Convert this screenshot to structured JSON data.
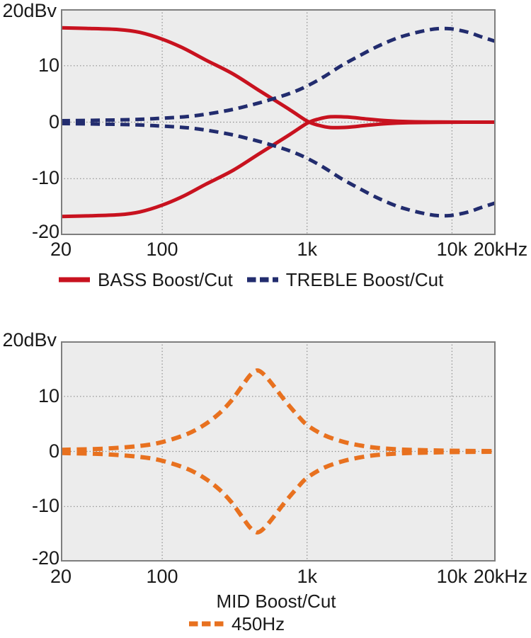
{
  "figure": {
    "description": "Tone control frequency response curves",
    "colors": {
      "bass_red": "#c8121f",
      "treble_navy": "#222c6e",
      "mid_orange": "#e8711f",
      "plot_background": "#ececec",
      "gridline": "#8f8f8f",
      "plot_border": "#7e7e7e",
      "text": "#1a1a1a"
    }
  },
  "chart_data": [
    {
      "type": "line",
      "title": "",
      "x_scale": "log",
      "x_range_hz": [
        20,
        20000
      ],
      "y_range_db": [
        -20,
        20
      ],
      "y_top_label": "20dBv",
      "y_ticks": [
        {
          "label": "10",
          "value": 10
        },
        {
          "label": "0",
          "value": 0
        },
        {
          "label": "-10",
          "value": -10
        },
        {
          "label": "-20",
          "value": -20
        }
      ],
      "x_ticks": [
        {
          "label": "20",
          "hz": 20
        },
        {
          "label": "100",
          "hz": 100
        },
        {
          "label": "1k",
          "hz": 1000
        },
        {
          "label": "10k",
          "hz": 10000
        },
        {
          "label": "20kHz",
          "hz": 20000
        }
      ],
      "grid": {
        "x_hz": [
          100,
          1000,
          10000
        ],
        "y_db": [
          10,
          0,
          -10
        ]
      },
      "legend": [
        {
          "label": "BASS Boost/Cut",
          "color": "#c8121f",
          "dashed": false
        },
        {
          "label": "TREBLE Boost/Cut",
          "color": "#222c6e",
          "dashed": true
        }
      ],
      "series": [
        {
          "name": "bass-boost",
          "color": "#c8121f",
          "dashed": false,
          "width": 5,
          "points": [
            [
              20,
              16.7
            ],
            [
              30,
              16.6
            ],
            [
              50,
              16.4
            ],
            [
              70,
              15.9
            ],
            [
              100,
              14.7
            ],
            [
              140,
              13.1
            ],
            [
              200,
              11.0
            ],
            [
              310,
              8.5
            ],
            [
              480,
              5.4
            ],
            [
              760,
              2.2
            ],
            [
              1000,
              0.2
            ],
            [
              1200,
              -0.55
            ],
            [
              1450,
              -0.95
            ],
            [
              1900,
              -0.9
            ],
            [
              2600,
              -0.55
            ],
            [
              3600,
              -0.25
            ],
            [
              5000,
              -0.1
            ],
            [
              8000,
              -0.02
            ],
            [
              20000,
              0
            ]
          ]
        },
        {
          "name": "bass-cut",
          "color": "#c8121f",
          "dashed": false,
          "width": 5,
          "points": [
            [
              20,
              -16.7
            ],
            [
              30,
              -16.6
            ],
            [
              50,
              -16.4
            ],
            [
              70,
              -15.9
            ],
            [
              100,
              -14.7
            ],
            [
              140,
              -13.1
            ],
            [
              200,
              -11.0
            ],
            [
              310,
              -8.5
            ],
            [
              480,
              -5.4
            ],
            [
              760,
              -2.2
            ],
            [
              1000,
              -0.2
            ],
            [
              1200,
              0.55
            ],
            [
              1450,
              0.95
            ],
            [
              1900,
              0.9
            ],
            [
              2600,
              0.55
            ],
            [
              3600,
              0.25
            ],
            [
              5000,
              0.1
            ],
            [
              8000,
              0.02
            ],
            [
              20000,
              0
            ]
          ]
        },
        {
          "name": "treble-boost",
          "color": "#222c6e",
          "dashed": true,
          "width": 5,
          "points": [
            [
              20,
              0.25
            ],
            [
              40,
              0.35
            ],
            [
              70,
              0.5
            ],
            [
              100,
              0.7
            ],
            [
              150,
              1.0
            ],
            [
              200,
              1.4
            ],
            [
              300,
              2.2
            ],
            [
              450,
              3.3
            ],
            [
              630,
              4.4
            ],
            [
              800,
              5.3
            ],
            [
              1000,
              6.4
            ],
            [
              1300,
              8.0
            ],
            [
              1700,
              9.9
            ],
            [
              2200,
              11.5
            ],
            [
              3000,
              13.3
            ],
            [
              4000,
              14.7
            ],
            [
              5000,
              15.5
            ],
            [
              6500,
              16.2
            ],
            [
              8000,
              16.55
            ],
            [
              10000,
              16.5
            ],
            [
              13000,
              15.9
            ],
            [
              16000,
              15.1
            ],
            [
              20000,
              14.3
            ]
          ]
        },
        {
          "name": "treble-cut",
          "color": "#222c6e",
          "dashed": true,
          "width": 5,
          "points": [
            [
              20,
              -0.25
            ],
            [
              40,
              -0.35
            ],
            [
              70,
              -0.5
            ],
            [
              100,
              -0.7
            ],
            [
              150,
              -1.0
            ],
            [
              200,
              -1.4
            ],
            [
              300,
              -2.2
            ],
            [
              450,
              -3.3
            ],
            [
              630,
              -4.4
            ],
            [
              800,
              -5.3
            ],
            [
              1000,
              -6.4
            ],
            [
              1300,
              -8.0
            ],
            [
              1700,
              -9.9
            ],
            [
              2200,
              -11.5
            ],
            [
              3000,
              -13.3
            ],
            [
              4000,
              -14.7
            ],
            [
              5000,
              -15.5
            ],
            [
              6500,
              -16.2
            ],
            [
              8000,
              -16.55
            ],
            [
              10000,
              -16.5
            ],
            [
              13000,
              -15.9
            ],
            [
              16000,
              -15.1
            ],
            [
              20000,
              -14.3
            ]
          ]
        }
      ]
    },
    {
      "type": "line",
      "title": "MID Boost/Cut",
      "x_scale": "log",
      "x_range_hz": [
        20,
        20000
      ],
      "y_range_db": [
        -20,
        20
      ],
      "y_top_label": "20dBv",
      "y_ticks": [
        {
          "label": "10",
          "value": 10
        },
        {
          "label": "0",
          "value": 0
        },
        {
          "label": "-10",
          "value": -10
        },
        {
          "label": "-20",
          "value": -20
        }
      ],
      "x_ticks": [
        {
          "label": "20",
          "hz": 20
        },
        {
          "label": "100",
          "hz": 100
        },
        {
          "label": "1k",
          "hz": 1000
        },
        {
          "label": "10k",
          "hz": 10000
        },
        {
          "label": "20kHz",
          "hz": 20000
        }
      ],
      "grid": {
        "x_hz": [
          100,
          1000,
          10000
        ],
        "y_db": [
          10,
          0,
          -10
        ]
      },
      "legend": [
        {
          "label": "450Hz",
          "color": "#e8711f",
          "dashed": true
        }
      ],
      "series": [
        {
          "name": "mid-boost-450hz",
          "color": "#e8711f",
          "dashed": true,
          "width": 6,
          "points": [
            [
              20,
              0.3
            ],
            [
              40,
              0.5
            ],
            [
              70,
              1.0
            ],
            [
              100,
              1.7
            ],
            [
              150,
              3.2
            ],
            [
              200,
              5.0
            ],
            [
              250,
              7.0
            ],
            [
              300,
              9.2
            ],
            [
              350,
              11.6
            ],
            [
              400,
              13.7
            ],
            [
              440,
              14.6
            ],
            [
              470,
              14.6
            ],
            [
              520,
              13.6
            ],
            [
              600,
              11.6
            ],
            [
              700,
              9.3
            ],
            [
              850,
              6.7
            ],
            [
              1000,
              4.8
            ],
            [
              1300,
              3.0
            ],
            [
              1700,
              1.9
            ],
            [
              2200,
              1.2
            ],
            [
              3000,
              0.65
            ],
            [
              4500,
              0.35
            ],
            [
              7000,
              0.2
            ],
            [
              12000,
              0.1
            ],
            [
              20000,
              0.05
            ]
          ]
        },
        {
          "name": "mid-cut-450hz",
          "color": "#e8711f",
          "dashed": true,
          "width": 6,
          "points": [
            [
              20,
              -0.3
            ],
            [
              40,
              -0.5
            ],
            [
              70,
              -1.0
            ],
            [
              100,
              -1.7
            ],
            [
              150,
              -3.2
            ],
            [
              200,
              -5.0
            ],
            [
              250,
              -7.0
            ],
            [
              300,
              -9.2
            ],
            [
              350,
              -11.6
            ],
            [
              400,
              -13.7
            ],
            [
              440,
              -14.6
            ],
            [
              470,
              -14.6
            ],
            [
              520,
              -13.6
            ],
            [
              600,
              -11.6
            ],
            [
              700,
              -9.3
            ],
            [
              850,
              -6.7
            ],
            [
              1000,
              -4.8
            ],
            [
              1300,
              -3.0
            ],
            [
              1700,
              -1.9
            ],
            [
              2200,
              -1.2
            ],
            [
              3000,
              -0.65
            ],
            [
              4500,
              -0.35
            ],
            [
              7000,
              -0.2
            ],
            [
              12000,
              -0.1
            ],
            [
              20000,
              -0.05
            ]
          ]
        }
      ]
    }
  ]
}
